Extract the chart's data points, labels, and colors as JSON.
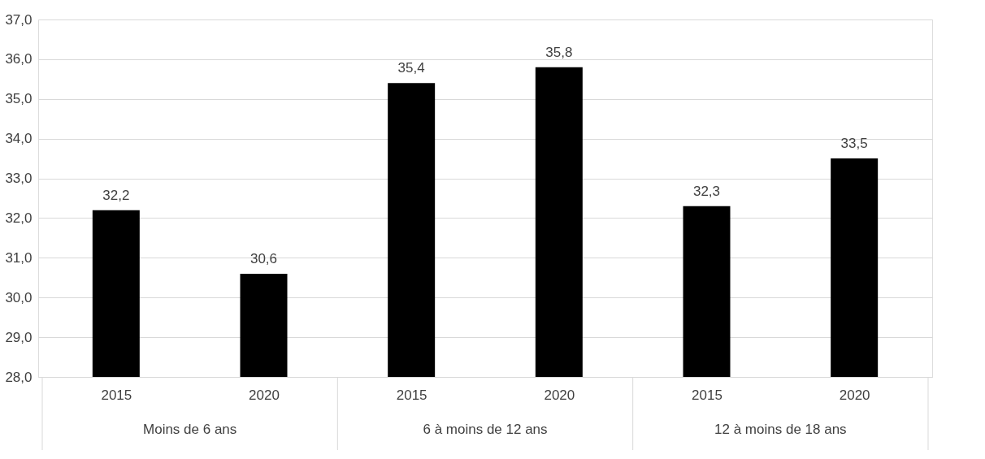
{
  "chart_data": {
    "type": "bar",
    "categories": [
      "2015",
      "2020",
      "2015",
      "2020",
      "2015",
      "2020"
    ],
    "values": [
      32.2,
      30.6,
      35.4,
      35.8,
      32.3,
      33.5
    ],
    "value_labels": [
      "32,2",
      "30,6",
      "35,4",
      "35,8",
      "32,3",
      "33,5"
    ],
    "color": "#000000",
    "ylim": [
      28,
      37
    ],
    "yticks": [
      {
        "value": 28,
        "label": "28,0"
      },
      {
        "value": 29,
        "label": "29,0"
      },
      {
        "value": 30,
        "label": "30,0"
      },
      {
        "value": 31,
        "label": "31,0"
      },
      {
        "value": 32,
        "label": "32,0"
      },
      {
        "value": 33,
        "label": "33,0"
      },
      {
        "value": 34,
        "label": "34,0"
      },
      {
        "value": 35,
        "label": "35,0"
      },
      {
        "value": 36,
        "label": "36,0"
      },
      {
        "value": 37,
        "label": "37,0"
      }
    ],
    "annotations": [
      "Moins de 6 ans",
      "6 à moins de 12 ans",
      "12 à moins de 18 ans"
    ],
    "grid": "y"
  }
}
